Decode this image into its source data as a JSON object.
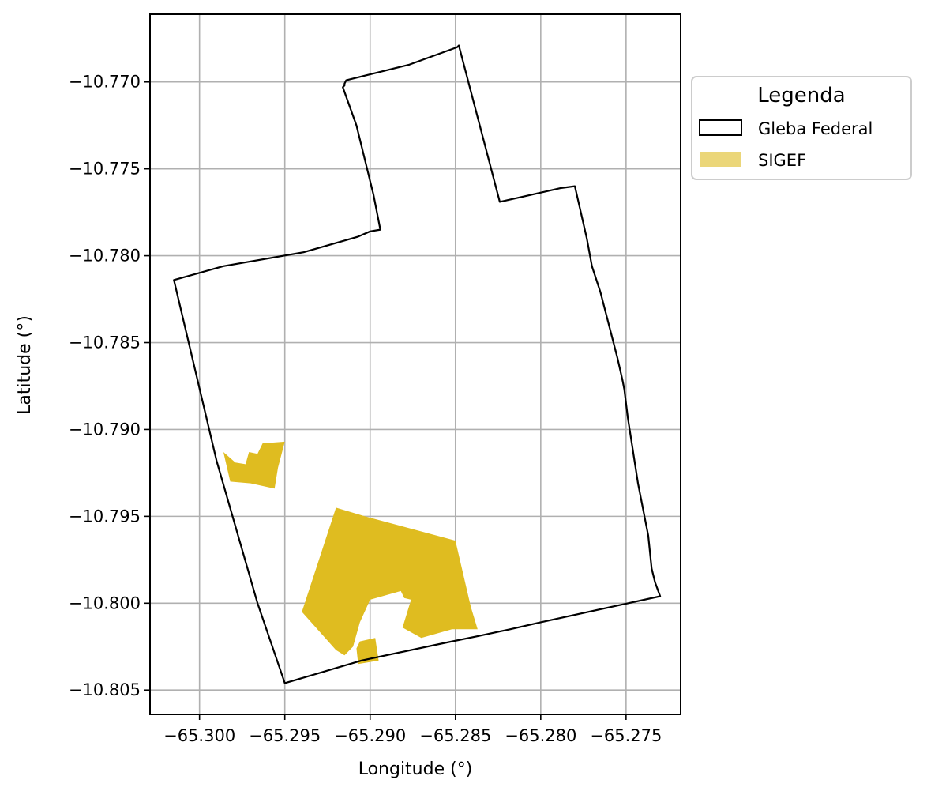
{
  "chart_data": {
    "type": "map",
    "xlabel": "Longitude (°)",
    "ylabel": "Latitude (°)",
    "xlim": [
      -65.3029,
      -65.2718
    ],
    "ylim": [
      -10.8064,
      -10.7661
    ],
    "x_ticks": [
      -65.3,
      -65.295,
      -65.29,
      -65.285,
      -65.28,
      -65.275
    ],
    "x_tick_labels": [
      "−65.300",
      "−65.295",
      "−65.290",
      "−65.285",
      "−65.280",
      "−65.275"
    ],
    "y_ticks": [
      -10.77,
      -10.775,
      -10.78,
      -10.785,
      -10.79,
      -10.795,
      -10.8,
      -10.805
    ],
    "y_tick_labels": [
      "−10.770",
      "−10.775",
      "−10.780",
      "−10.785",
      "−10.790",
      "−10.795",
      "−10.800",
      "−10.805"
    ],
    "grid": true,
    "legend": {
      "title": "Legenda",
      "placement": "outside-upper-right",
      "entries": [
        {
          "label": "Gleba Federal",
          "style": "outline",
          "color": "#000000"
        },
        {
          "label": "SIGEF",
          "style": "fill",
          "color": "#ebd679"
        }
      ]
    },
    "layers": [
      {
        "name": "Gleba Federal",
        "style": "outline",
        "stroke": "#000000",
        "polygons": [
          [
            [
              -65.2914,
              -10.7699
            ],
            [
              -65.2877,
              -10.769
            ],
            [
              -65.2849,
              -10.768
            ],
            [
              -65.2848,
              -10.7679
            ],
            [
              -65.2824,
              -10.7769
            ],
            [
              -65.2806,
              -10.7765
            ],
            [
              -65.2788,
              -10.7761
            ],
            [
              -65.278,
              -10.776
            ],
            [
              -65.2773,
              -10.779
            ],
            [
              -65.277,
              -10.7806
            ],
            [
              -65.2765,
              -10.7821
            ],
            [
              -65.2755,
              -10.7859
            ],
            [
              -65.2752,
              -10.7872
            ],
            [
              -65.2751,
              -10.7877
            ],
            [
              -65.2749,
              -10.7893
            ],
            [
              -65.2743,
              -10.7931
            ],
            [
              -65.2737,
              -10.7961
            ],
            [
              -65.2735,
              -10.798
            ],
            [
              -65.2733,
              -10.7988
            ],
            [
              -65.273,
              -10.7996
            ],
            [
              -65.28,
              -10.8011
            ],
            [
              -65.2818,
              -10.8015
            ],
            [
              -65.2837,
              -10.8019
            ],
            [
              -65.2857,
              -10.8023
            ],
            [
              -65.2905,
              -10.8033
            ],
            [
              -65.295,
              -10.8046
            ],
            [
              -65.2966,
              -10.8
            ],
            [
              -65.299,
              -10.7918
            ],
            [
              -65.3015,
              -10.7814
            ],
            [
              -65.2986,
              -10.7806
            ],
            [
              -65.2939,
              -10.7798
            ],
            [
              -65.2907,
              -10.7789
            ],
            [
              -65.29,
              -10.7786
            ],
            [
              -65.2894,
              -10.7785
            ],
            [
              -65.2898,
              -10.7765
            ],
            [
              -65.2908,
              -10.7725
            ],
            [
              -65.2916,
              -10.7703
            ],
            [
              -65.2915,
              -10.7702
            ],
            [
              -65.2915,
              -10.7701
            ],
            [
              -65.2914,
              -10.7699
            ]
          ]
        ]
      },
      {
        "name": "SIGEF",
        "style": "fill",
        "fill": "#dfbc20",
        "polygons": [
          [
            [
              -65.2986,
              -10.7913
            ],
            [
              -65.2979,
              -10.7919
            ],
            [
              -65.2973,
              -10.792
            ],
            [
              -65.2971,
              -10.7913
            ],
            [
              -65.2966,
              -10.7914
            ],
            [
              -65.2963,
              -10.7908
            ],
            [
              -65.295,
              -10.7907
            ],
            [
              -65.2954,
              -10.7922
            ],
            [
              -65.2956,
              -10.7934
            ],
            [
              -65.297,
              -10.7931
            ],
            [
              -65.2982,
              -10.793
            ]
          ],
          [
            [
              -65.292,
              -10.7945
            ],
            [
              -65.2903,
              -10.795
            ],
            [
              -65.285,
              -10.7964
            ],
            [
              -65.2841,
              -10.8002
            ],
            [
              -65.2837,
              -10.8015
            ],
            [
              -65.2852,
              -10.8015
            ],
            [
              -65.287,
              -10.802
            ],
            [
              -65.2881,
              -10.8014
            ],
            [
              -65.2876,
              -10.7998
            ],
            [
              -65.288,
              -10.7997
            ],
            [
              -65.2882,
              -10.7993
            ],
            [
              -65.29,
              -10.7998
            ],
            [
              -65.2906,
              -10.8011
            ],
            [
              -65.291,
              -10.8025
            ],
            [
              -65.2915,
              -10.803
            ],
            [
              -65.292,
              -10.8027
            ],
            [
              -65.294,
              -10.8005
            ]
          ],
          [
            [
              -65.2906,
              -10.8022
            ],
            [
              -65.2897,
              -10.802
            ],
            [
              -65.2895,
              -10.8033
            ],
            [
              -65.2907,
              -10.8035
            ],
            [
              -65.2908,
              -10.8026
            ]
          ]
        ]
      }
    ]
  }
}
